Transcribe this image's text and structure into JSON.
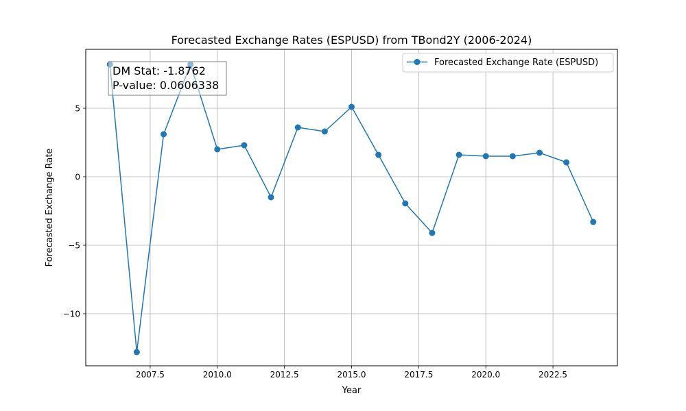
{
  "chart_data": {
    "type": "line",
    "title": "Forecasted Exchange Rates (ESPUSD) from TBond2Y (2006-2024)",
    "xlabel": "Year",
    "ylabel": "Forecasted Exchange Rate",
    "xlim": [
      2005.1,
      2024.9
    ],
    "ylim": [
      -13.8,
      9.3
    ],
    "grid": true,
    "legend_position": "top-right",
    "xticks": [
      2007.5,
      2010.0,
      2012.5,
      2015.0,
      2017.5,
      2020.0,
      2022.5
    ],
    "xtick_labels": [
      "2007.5",
      "2010.0",
      "2012.5",
      "2015.0",
      "2017.5",
      "2020.0",
      "2022.5"
    ],
    "yticks": [
      -10,
      -5,
      0,
      5
    ],
    "ytick_labels": [
      "−10",
      "−5",
      "0",
      "5"
    ],
    "series": [
      {
        "name": "Forecasted Exchange Rate (ESPUSD)",
        "color": "#1f77b4",
        "x": [
          2006,
          2007,
          2008,
          2009,
          2010,
          2011,
          2012,
          2013,
          2014,
          2015,
          2016,
          2017,
          2018,
          2019,
          2020,
          2021,
          2022,
          2023,
          2024
        ],
        "y": [
          8.2,
          -12.8,
          3.1,
          8.2,
          2.0,
          2.3,
          -1.5,
          3.6,
          3.3,
          5.1,
          1.6,
          -1.95,
          -4.1,
          1.6,
          1.5,
          1.5,
          1.75,
          1.05,
          -3.3
        ]
      }
    ],
    "annotation": {
      "line1": "DM Stat: -1.8762",
      "line2": "P-value: 0.0606338"
    }
  }
}
